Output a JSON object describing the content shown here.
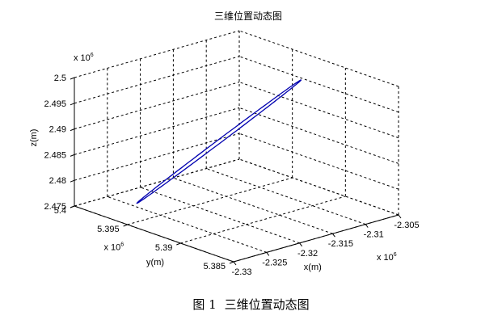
{
  "chart_data": {
    "type": "line3d",
    "title": "三维位置动态图",
    "xlabel": "x(m)",
    "ylabel": "y(m)",
    "zlabel": "z(m)",
    "x_exponent": "x 10",
    "x_exponent_power": "6",
    "y_exponent": "x 10",
    "y_exponent_power": "6",
    "z_exponent": "x 10",
    "z_exponent_power": "6",
    "xlim": [
      -2.33,
      -2.305
    ],
    "ylim": [
      5.385,
      5.4
    ],
    "zlim": [
      2.475,
      2.5
    ],
    "x_ticks": [
      -2.33,
      -2.325,
      -2.32,
      -2.315,
      -2.31,
      -2.305
    ],
    "x_tick_labels": [
      "-2.33",
      "-2.325",
      "-2.32",
      "-2.315",
      "-2.31",
      "-2.305"
    ],
    "y_ticks": [
      5.385,
      5.39,
      5.395,
      5.4
    ],
    "y_tick_labels": [
      "5.385",
      "5.39",
      "5.395",
      "5.4"
    ],
    "z_ticks": [
      2.475,
      2.48,
      2.485,
      2.49,
      2.495,
      2.5
    ],
    "z_tick_labels": [
      "2.475",
      "2.48",
      "2.485",
      "2.49",
      "2.495",
      "2.5"
    ],
    "grid": true,
    "series": [
      {
        "color": "#0000b0",
        "shape": "closed-ellipse",
        "end_a": [
          -2.3247,
          5.3974,
          2.4755
        ],
        "end_b": [
          -2.3101,
          5.391,
          2.4988
        ],
        "minor_semi_axis": [
          0.0004,
          0.0003,
          0.0
        ]
      }
    ]
  },
  "caption": {
    "number": "图 1",
    "text": "三维位置动态图"
  }
}
